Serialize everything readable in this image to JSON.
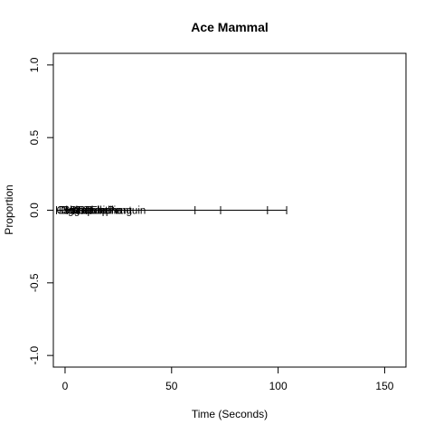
{
  "chart_data": {
    "type": "line",
    "title": "Ace Mammal",
    "xlabel": "Time (Seconds)",
    "ylabel": "Proportion",
    "xlim": [
      -5.5,
      160
    ],
    "ylim": [
      -1.08,
      1.08
    ],
    "x_ticks": [
      0,
      50,
      100,
      150
    ],
    "x_tick_labels": [
      "0",
      "50",
      "100",
      "150"
    ],
    "y_ticks": [
      -1.0,
      -0.5,
      0.0,
      0.5,
      1.0
    ],
    "y_tick_labels": [
      "-1.0",
      "-0.5",
      "0.0",
      "0.5",
      "1.0"
    ],
    "grid": false,
    "legend": "none",
    "series": [
      {
        "color": "#000000",
        "x": [
          -4,
          104
        ],
        "values": [
          0,
          0
        ]
      }
    ],
    "event_ticks": {
      "y": 0,
      "x": [
        -4,
        1,
        4,
        6,
        8,
        10,
        12,
        61,
        73,
        95,
        104
      ]
    },
    "annotations": [
      {
        "text": "Cattle",
        "x": -4,
        "y": 0
      },
      {
        "text": "Pig",
        "x": -3,
        "y": 0
      },
      {
        "text": "Dog",
        "x": -2,
        "y": 0
      },
      {
        "text": "Sheep",
        "x": -1,
        "y": 0
      },
      {
        "text": "Horse",
        "x": 0,
        "y": 0
      },
      {
        "text": "Goat",
        "x": 2,
        "y": 0
      },
      {
        "text": "Cat",
        "x": 4,
        "y": 0
      },
      {
        "text": "Rabbit",
        "x": 6,
        "y": 0
      },
      {
        "text": "Camel",
        "x": 8,
        "y": 0
      },
      {
        "text": "Dolphin",
        "x": 10,
        "y": 0
      },
      {
        "text": "Elephant",
        "x": 12,
        "y": 0
      },
      {
        "text": "Penguin",
        "x": 20,
        "y": 0
      }
    ]
  }
}
